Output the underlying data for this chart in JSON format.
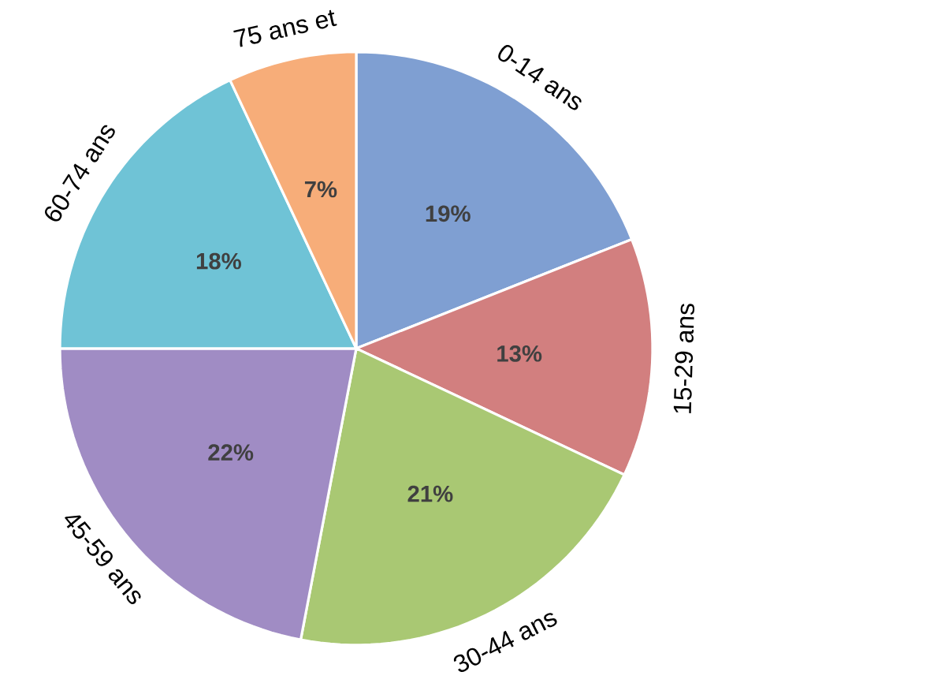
{
  "chart_data": {
    "type": "pie",
    "categories": [
      "0-14 ans",
      "15-29 ans",
      "30-44 ans",
      "45-59 ans",
      "60-74 ans",
      "75 ans et"
    ],
    "values": [
      19,
      13,
      21,
      22,
      18,
      7
    ],
    "value_labels": [
      "19%",
      "13%",
      "21%",
      "22%",
      "18%",
      "7%"
    ],
    "colors": [
      "#7f9fd2",
      "#d27f7f",
      "#a9c873",
      "#a08cc4",
      "#6fc3d6",
      "#f7ad79"
    ]
  }
}
